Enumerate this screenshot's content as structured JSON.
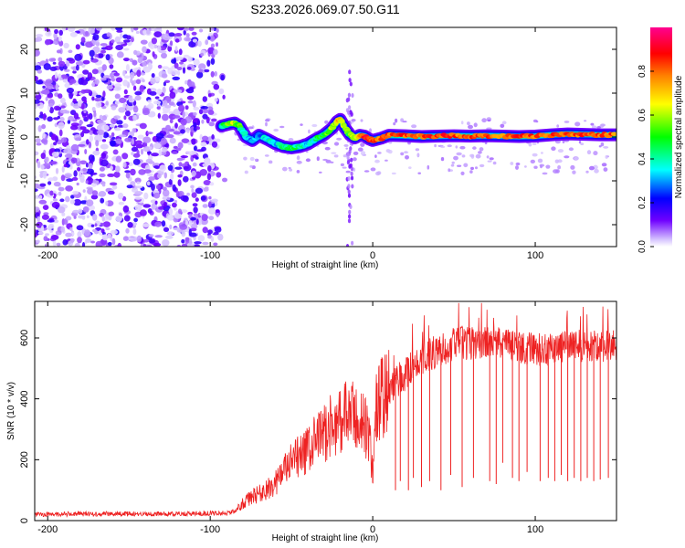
{
  "figure": {
    "title": "S233.2026.069.07.50.G11"
  },
  "chart_data": [
    {
      "type": "heatmap",
      "name": "spectrogram",
      "xlabel": "Height of straight line (km)",
      "ylabel": "Frequency (Hz)",
      "xlim": [
        -208,
        150
      ],
      "ylim": [
        -25,
        25
      ],
      "xticks": [
        -200,
        -100,
        0,
        100
      ],
      "yticks": [
        -20,
        -10,
        0,
        10,
        20
      ],
      "colorbar": {
        "label": "Normalized spectral amplitude",
        "range": [
          0,
          1
        ],
        "ticks": [
          0.0,
          0.2,
          0.4,
          0.6,
          0.8
        ],
        "tick_labels": [
          "0.0",
          "0.2",
          "0.4",
          "0.6",
          "0.8"
        ],
        "colormap": [
          "#ffffff",
          "#6f00ff",
          "#0000ff",
          "#00ffff",
          "#00ff00",
          "#ffff00",
          "#ff8000",
          "#ff0000",
          "#ff00aa"
        ]
      },
      "noise_region_x": [
        -208,
        -90
      ],
      "signal_trace": {
        "x": [
          -93,
          -88,
          -85,
          -82,
          -78,
          -74,
          -70,
          -65,
          -60,
          -55,
          -50,
          -45,
          -40,
          -35,
          -30,
          -25,
          -22,
          -20,
          -17,
          -14,
          -11,
          -8,
          -5,
          -2,
          0,
          5,
          10,
          20,
          30,
          40,
          50,
          60,
          70,
          80,
          90,
          100,
          110,
          120,
          130,
          140,
          150
        ],
        "y": [
          2.5,
          3.0,
          3.2,
          2.5,
          0.0,
          -0.8,
          0.4,
          -0.5,
          -1.5,
          -2.2,
          -2.5,
          -2.2,
          -1.6,
          -0.5,
          0.5,
          2.0,
          3.5,
          4.0,
          2.0,
          0.5,
          -0.2,
          0.4,
          0.2,
          -0.5,
          -0.8,
          -0.3,
          0.4,
          0.3,
          0.1,
          0.2,
          0.3,
          0.2,
          0.3,
          0.2,
          0.1,
          0.2,
          0.5,
          0.7,
          0.6,
          0.5,
          0.5
        ],
        "amplitude": [
          0.45,
          0.55,
          0.6,
          0.5,
          0.35,
          0.3,
          0.3,
          0.35,
          0.35,
          0.4,
          0.45,
          0.4,
          0.35,
          0.4,
          0.5,
          0.6,
          0.65,
          0.7,
          0.55,
          0.5,
          0.6,
          0.75,
          0.85,
          0.9,
          0.85,
          0.8,
          0.8,
          0.82,
          0.8,
          0.85,
          0.82,
          0.8,
          0.82,
          0.8,
          0.85,
          0.8,
          0.82,
          0.8,
          0.82,
          0.8,
          0.8
        ]
      }
    },
    {
      "type": "line",
      "name": "snr",
      "xlabel": "Height of straight line (km)",
      "ylabel": "SNR (10 * v/v)",
      "xlim": [
        -208,
        150
      ],
      "ylim": [
        0,
        720
      ],
      "xticks": [
        -200,
        -100,
        0,
        100
      ],
      "yticks": [
        0,
        200,
        400,
        600
      ],
      "color": "#ee2222",
      "series": [
        {
          "name": "SNR",
          "x": [
            -208,
            -180,
            -150,
            -120,
            -100,
            -90,
            -85,
            -80,
            -75,
            -70,
            -65,
            -60,
            -55,
            -50,
            -45,
            -40,
            -35,
            -30,
            -25,
            -20,
            -15,
            -10,
            -5,
            -2,
            0,
            2,
            5,
            10,
            15,
            20,
            25,
            30,
            35,
            40,
            45,
            50,
            55,
            60,
            65,
            70,
            75,
            80,
            90,
            100,
            110,
            120,
            130,
            140,
            150
          ],
          "y": [
            20,
            22,
            22,
            22,
            24,
            25,
            30,
            55,
            75,
            90,
            100,
            125,
            160,
            190,
            210,
            230,
            260,
            290,
            310,
            330,
            350,
            330,
            320,
            260,
            150,
            380,
            400,
            420,
            460,
            480,
            510,
            530,
            545,
            560,
            565,
            580,
            585,
            580,
            585,
            580,
            585,
            580,
            570,
            560,
            565,
            570,
            575,
            575,
            580
          ],
          "dropouts": [
            {
              "x": 14,
              "y": 100
            },
            {
              "x": 17,
              "y": 130
            },
            {
              "x": 22,
              "y": 100
            },
            {
              "x": 25,
              "y": 140
            },
            {
              "x": 30,
              "y": 110
            },
            {
              "x": 35,
              "y": 130
            },
            {
              "x": 42,
              "y": 100
            },
            {
              "x": 48,
              "y": 150
            },
            {
              "x": 55,
              "y": 110
            },
            {
              "x": 62,
              "y": 140
            },
            {
              "x": 72,
              "y": 130
            },
            {
              "x": 76,
              "y": 120
            },
            {
              "x": 80,
              "y": 190
            },
            {
              "x": 86,
              "y": 140
            },
            {
              "x": 90,
              "y": 130
            },
            {
              "x": 95,
              "y": 160
            },
            {
              "x": 103,
              "y": 130
            },
            {
              "x": 108,
              "y": 140
            },
            {
              "x": 112,
              "y": 130
            },
            {
              "x": 116,
              "y": 150
            },
            {
              "x": 120,
              "y": 130
            },
            {
              "x": 124,
              "y": 140
            },
            {
              "x": 128,
              "y": 130
            },
            {
              "x": 132,
              "y": 140
            },
            {
              "x": 136,
              "y": 130
            },
            {
              "x": 140,
              "y": 135
            },
            {
              "x": 145,
              "y": 140
            }
          ]
        }
      ]
    }
  ]
}
